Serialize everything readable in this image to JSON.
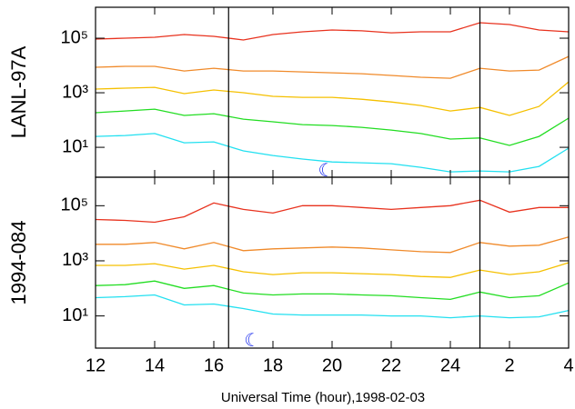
{
  "chart_data": [
    {
      "type": "line",
      "ylabel": "LANL-97A",
      "log_y": true,
      "xlim": [
        12,
        28
      ],
      "ylim": [
        0.8,
        1360000
      ],
      "yticks": [
        {
          "value": 10,
          "label": "10¹"
        },
        {
          "value": 1000,
          "label": "10³"
        },
        {
          "value": 100000,
          "label": "10⁵"
        }
      ],
      "vlines": [
        16.5,
        25
      ],
      "annotations": [
        {
          "x": 19.8,
          "y": 1.3,
          "text": "☾",
          "color": "#2233ee"
        }
      ],
      "x": [
        12,
        13,
        14,
        15,
        16,
        17,
        18,
        19,
        20,
        21,
        22,
        23,
        24,
        25,
        26,
        27,
        28
      ],
      "series": [
        {
          "color": "#e8321e",
          "values": [
            93000,
            100000,
            108000,
            136000,
            117000,
            86000,
            136000,
            171000,
            200000,
            186000,
            158000,
            171000,
            171000,
            369000,
            316000,
            200000,
            171000
          ]
        },
        {
          "color": "#f08a2a",
          "values": [
            8600,
            9300,
            9300,
            6300,
            7900,
            6300,
            6300,
            5800,
            5400,
            5000,
            4300,
            3700,
            3400,
            7900,
            6300,
            6800,
            21500
          ]
        },
        {
          "color": "#f5c000",
          "values": [
            1360,
            1470,
            1580,
            930,
            1260,
            1000,
            740,
            680,
            680,
            580,
            460,
            340,
            215,
            290,
            147,
            316,
            2500
          ]
        },
        {
          "color": "#22dd22",
          "values": [
            185,
            215,
            250,
            147,
            171,
            108,
            86,
            68,
            63,
            54,
            43,
            32,
            20,
            22,
            11.7,
            25,
            117
          ]
        },
        {
          "color": "#22e0f0",
          "values": [
            25,
            27,
            32,
            14.7,
            15.8,
            7.4,
            5.0,
            3.7,
            2.9,
            2.7,
            2.5,
            1.85,
            1.26,
            1.36,
            1.26,
            2.0,
            9.3
          ]
        }
      ]
    },
    {
      "type": "line",
      "ylabel": "1994-084",
      "log_y": true,
      "xlabel": "Universal Time (hour),1998-02-03",
      "xlim": [
        12,
        28
      ],
      "ylim": [
        0.68,
        1080000
      ],
      "xticks": [
        12,
        14,
        16,
        18,
        20,
        22,
        24,
        {
          "value": 26,
          "label": "2"
        },
        {
          "value": 28,
          "label": "4"
        }
      ],
      "yticks": [
        {
          "value": 10,
          "label": "10¹"
        },
        {
          "value": 1000,
          "label": "10³"
        },
        {
          "value": 100000,
          "label": "10⁵"
        }
      ],
      "vlines": [
        16.5,
        25
      ],
      "annotations": [
        {
          "x": 17.3,
          "y": 1.17,
          "text": "☾",
          "color": "#2233ee"
        }
      ],
      "x": [
        12,
        13,
        14,
        15,
        16,
        17,
        18,
        19,
        20,
        21,
        22,
        23,
        24,
        25,
        26,
        27,
        28
      ],
      "series": [
        {
          "color": "#e8321e",
          "values": [
            31600,
            29300,
            25100,
            39800,
            126000,
            73600,
            54100,
            100000,
            100000,
            85800,
            73600,
            85800,
            100000,
            158000,
            58500,
            85800,
            85800
          ]
        },
        {
          "color": "#f08a2a",
          "values": [
            3980,
            3980,
            4640,
            2710,
            4640,
            2330,
            2710,
            2930,
            3160,
            2930,
            2510,
            2150,
            2000,
            4640,
            3410,
            3690,
            7360
          ]
        },
        {
          "color": "#f5c000",
          "values": [
            680,
            680,
            790,
            500,
            680,
            400,
            316,
            369,
            369,
            341,
            316,
            271,
            251,
            464,
            316,
            400,
            858
          ]
        },
        {
          "color": "#22dd22",
          "values": [
            126,
            136,
            185,
            100,
            126,
            68,
            58,
            63,
            63,
            58,
            54,
            46,
            40,
            74,
            46,
            54,
            158
          ]
        },
        {
          "color": "#22e0f0",
          "values": [
            46,
            50,
            58,
            25,
            27,
            18.5,
            11.7,
            10.8,
            10.8,
            10.8,
            10,
            10,
            8.6,
            10,
            8.6,
            9.3,
            15.8
          ]
        }
      ]
    }
  ]
}
